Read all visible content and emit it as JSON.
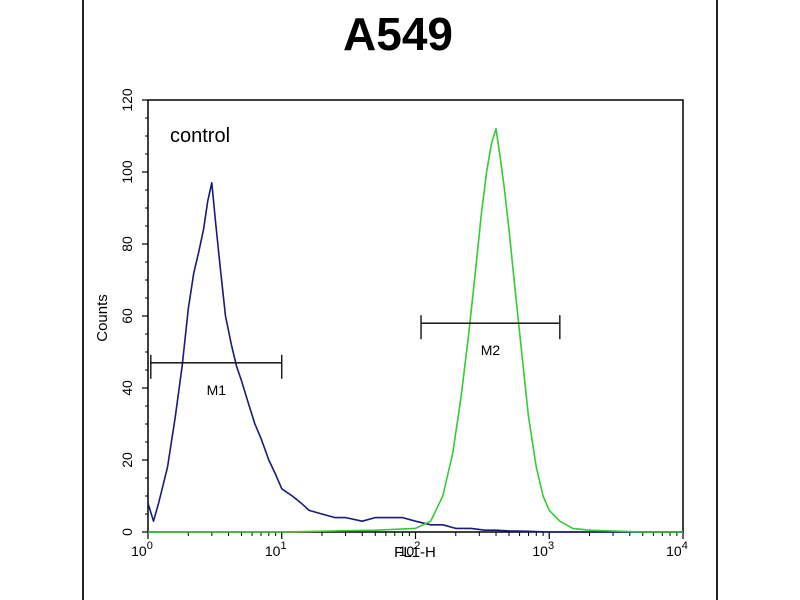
{
  "chart_data": {
    "type": "line",
    "title": "A549",
    "xlabel": "FL1-H",
    "ylabel": "Counts",
    "x_scale": "log",
    "xlim": [
      1,
      10000
    ],
    "ylim": [
      0,
      120
    ],
    "x_ticks": [
      {
        "base": "10",
        "exp": "0",
        "value": 1
      },
      {
        "base": "10",
        "exp": "1",
        "value": 10
      },
      {
        "base": "10",
        "exp": "2",
        "value": 100
      },
      {
        "base": "10",
        "exp": "3",
        "value": 1000
      },
      {
        "base": "10",
        "exp": "4",
        "value": 10000
      }
    ],
    "y_ticks": [
      "0",
      "20",
      "40",
      "60",
      "80",
      "100",
      "120"
    ],
    "grid": false,
    "annotation": "control",
    "markers": [
      {
        "label": "M1",
        "x_start": 1.05,
        "x_end": 10,
        "y": 47
      },
      {
        "label": "M2",
        "x_start": 110,
        "x_end": 1200,
        "y": 58
      }
    ],
    "series": [
      {
        "color": "#1a1a7a",
        "x": [
          1,
          1.1,
          1.2,
          1.4,
          1.6,
          1.8,
          2.0,
          2.2,
          2.4,
          2.6,
          2.8,
          3.0,
          3.2,
          3.5,
          3.8,
          4.2,
          4.6,
          5.0,
          5.6,
          6.3,
          7.0,
          8.0,
          9.0,
          10,
          12,
          14,
          16,
          20,
          25,
          30,
          40,
          50,
          60,
          80,
          100,
          130,
          160,
          200,
          260,
          330,
          400,
          500,
          700,
          1000,
          2000,
          5000,
          10000
        ],
        "y": [
          8,
          3,
          8,
          18,
          32,
          46,
          62,
          72,
          78,
          84,
          92,
          97,
          86,
          72,
          60,
          52,
          46,
          42,
          36,
          30,
          26,
          20,
          16,
          12,
          10,
          8,
          6,
          5,
          4,
          4,
          3,
          4,
          4,
          4,
          3,
          2,
          2,
          1,
          1,
          0.5,
          0.5,
          0.3,
          0.2,
          0,
          0,
          0,
          0
        ]
      },
      {
        "color": "#33cc33",
        "x": [
          1,
          10,
          50,
          100,
          130,
          160,
          190,
          220,
          250,
          280,
          310,
          340,
          370,
          400,
          430,
          460,
          500,
          560,
          630,
          700,
          800,
          900,
          1000,
          1200,
          1500,
          2000,
          5000,
          10000
        ],
        "y": [
          0,
          0,
          0.5,
          1,
          3,
          10,
          22,
          38,
          55,
          72,
          88,
          100,
          108,
          112,
          104,
          96,
          84,
          66,
          48,
          32,
          18,
          10,
          6,
          3,
          1,
          0.5,
          0,
          0
        ]
      }
    ]
  }
}
